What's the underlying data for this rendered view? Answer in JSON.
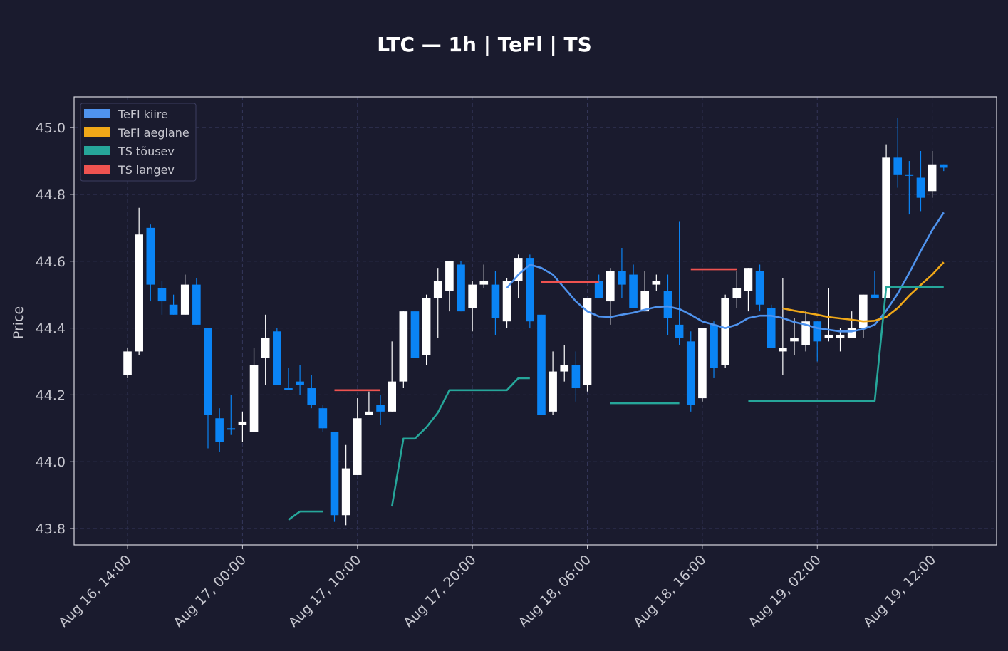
{
  "chart_data": {
    "type": "candlestick",
    "title": "LTC — 1h  |  TeFl  |  TS",
    "y_label": "Price",
    "open": [
      44.26,
      44.33,
      44.7,
      44.52,
      44.47,
      44.44,
      44.53,
      44.4,
      44.13,
      44.1,
      44.11,
      44.09,
      44.31,
      44.39,
      44.22,
      44.24,
      44.22,
      44.16,
      44.09,
      43.84,
      43.96,
      44.14,
      44.17,
      44.15,
      44.24,
      44.45,
      44.32,
      44.49,
      44.51,
      44.59,
      44.46,
      44.53,
      44.53,
      44.42,
      44.54,
      44.61,
      44.44,
      44.15,
      44.27,
      44.29,
      44.23,
      44.54,
      44.48,
      44.57,
      44.56,
      44.45,
      44.53,
      44.51,
      44.41,
      44.36,
      44.19,
      44.41,
      44.29,
      44.49,
      44.51,
      44.57,
      44.46,
      44.33,
      44.36,
      44.35,
      44.42,
      44.37,
      44.37,
      44.37,
      44.4,
      44.5,
      44.49,
      44.91,
      44.86,
      44.85,
      44.81,
      44.89
    ],
    "high": [
      44.34,
      44.76,
      44.71,
      44.54,
      44.5,
      44.56,
      44.55,
      44.4,
      44.16,
      44.2,
      44.15,
      44.34,
      44.44,
      44.4,
      44.28,
      44.29,
      44.26,
      44.17,
      44.09,
      44.05,
      44.19,
      44.21,
      44.2,
      44.36,
      44.45,
      44.45,
      44.5,
      44.58,
      44.6,
      44.6,
      44.54,
      44.59,
      44.57,
      44.55,
      44.62,
      44.62,
      44.44,
      44.33,
      44.35,
      44.33,
      44.49,
      44.56,
      44.58,
      44.64,
      44.59,
      44.57,
      44.56,
      44.56,
      44.72,
      44.39,
      44.4,
      44.42,
      44.5,
      44.57,
      44.58,
      44.59,
      44.47,
      44.55,
      44.43,
      44.45,
      44.42,
      44.52,
      44.4,
      44.45,
      44.5,
      44.57,
      44.95,
      45.03,
      44.9,
      44.93,
      44.93,
      44.89
    ],
    "low": [
      44.25,
      44.32,
      44.48,
      44.44,
      44.44,
      44.44,
      44.41,
      44.04,
      44.03,
      44.08,
      44.06,
      44.09,
      44.23,
      44.23,
      44.22,
      44.2,
      44.16,
      44.09,
      43.82,
      43.81,
      43.96,
      44.14,
      44.11,
      44.15,
      44.22,
      44.31,
      44.29,
      44.37,
      44.45,
      44.45,
      44.39,
      44.52,
      44.38,
      44.4,
      44.49,
      44.4,
      44.14,
      44.14,
      44.24,
      44.18,
      44.21,
      44.49,
      44.41,
      44.49,
      44.46,
      44.45,
      44.51,
      44.38,
      44.35,
      44.15,
      44.18,
      44.25,
      44.28,
      44.46,
      44.45,
      44.45,
      44.34,
      44.26,
      44.32,
      44.33,
      44.3,
      44.36,
      44.33,
      44.37,
      44.37,
      44.49,
      44.49,
      44.82,
      44.74,
      44.75,
      44.79,
      44.87
    ],
    "close": [
      44.33,
      44.68,
      44.53,
      44.48,
      44.44,
      44.53,
      44.41,
      44.14,
      44.06,
      44.1,
      44.12,
      44.29,
      44.37,
      44.23,
      44.22,
      44.23,
      44.17,
      44.1,
      43.84,
      43.98,
      44.13,
      44.15,
      44.15,
      44.24,
      44.45,
      44.31,
      44.49,
      44.54,
      44.6,
      44.45,
      44.53,
      44.54,
      44.43,
      44.54,
      44.61,
      44.42,
      44.14,
      44.27,
      44.29,
      44.22,
      44.49,
      44.49,
      44.57,
      44.53,
      44.46,
      44.51,
      44.54,
      44.43,
      44.37,
      44.17,
      44.4,
      44.28,
      44.49,
      44.52,
      44.58,
      44.47,
      44.34,
      44.34,
      44.37,
      44.42,
      44.36,
      44.38,
      44.38,
      44.4,
      44.5,
      44.49,
      44.91,
      44.86,
      44.86,
      44.79,
      44.89,
      44.88
    ],
    "up_color": "#ffffff",
    "down_color": "#0a84f5",
    "lines": [
      {
        "name": "TeFl kiire",
        "color": "#4f93ee",
        "values": [
          null,
          null,
          null,
          null,
          null,
          null,
          null,
          null,
          null,
          null,
          null,
          null,
          null,
          null,
          null,
          null,
          null,
          null,
          null,
          null,
          null,
          null,
          null,
          null,
          null,
          null,
          null,
          null,
          null,
          null,
          null,
          null,
          null,
          44.52,
          44.56,
          44.59,
          44.58,
          44.56,
          44.52,
          44.48,
          44.45,
          44.435,
          44.433,
          44.44,
          44.446,
          44.455,
          44.463,
          44.465,
          44.457,
          44.44,
          44.42,
          44.41,
          44.4,
          44.41,
          44.43,
          44.437,
          44.437,
          44.43,
          44.418,
          44.41,
          44.4,
          44.395,
          44.39,
          44.39,
          44.397,
          44.41,
          44.452,
          44.503,
          44.565,
          44.631,
          44.693,
          44.746
        ]
      },
      {
        "name": "TeFl aeglane",
        "color": "#f0a818",
        "values": [
          null,
          null,
          null,
          null,
          null,
          null,
          null,
          null,
          null,
          null,
          null,
          null,
          null,
          null,
          null,
          null,
          null,
          null,
          null,
          null,
          null,
          null,
          null,
          null,
          null,
          null,
          null,
          null,
          null,
          null,
          null,
          null,
          null,
          null,
          null,
          null,
          null,
          null,
          null,
          null,
          null,
          null,
          null,
          null,
          null,
          null,
          null,
          null,
          null,
          null,
          null,
          null,
          null,
          null,
          null,
          null,
          null,
          44.459,
          44.452,
          44.446,
          44.44,
          44.433,
          44.429,
          44.425,
          44.42,
          44.422,
          44.433,
          44.46,
          44.497,
          44.529,
          44.56,
          44.597
        ]
      },
      {
        "name": "TS tõusev",
        "color": "#26a69a",
        "values": [
          null,
          null,
          null,
          null,
          null,
          null,
          null,
          null,
          null,
          null,
          null,
          null,
          null,
          null,
          43.826,
          43.851,
          43.851,
          43.851,
          null,
          null,
          null,
          null,
          null,
          43.866,
          44.069,
          44.069,
          44.103,
          44.147,
          44.214,
          44.214,
          44.214,
          44.214,
          44.214,
          44.214,
          44.25,
          44.25,
          null,
          null,
          null,
          null,
          null,
          null,
          44.175,
          44.175,
          44.175,
          44.175,
          44.175,
          44.175,
          44.175,
          null,
          null,
          null,
          null,
          null,
          44.182,
          44.182,
          44.182,
          44.182,
          44.182,
          44.182,
          44.182,
          44.182,
          44.182,
          44.182,
          44.182,
          44.182,
          44.523,
          44.523,
          44.523,
          44.523,
          44.523,
          44.523
        ]
      },
      {
        "name": "TS langev",
        "color": "#ef5350",
        "values": [
          null,
          null,
          null,
          null,
          null,
          null,
          null,
          null,
          null,
          null,
          null,
          null,
          null,
          null,
          null,
          null,
          null,
          null,
          44.214,
          44.214,
          44.214,
          44.214,
          44.214,
          null,
          null,
          null,
          null,
          null,
          null,
          null,
          null,
          null,
          null,
          null,
          null,
          null,
          44.537,
          44.537,
          44.537,
          44.537,
          44.537,
          44.537,
          null,
          null,
          null,
          null,
          null,
          null,
          null,
          44.576,
          44.576,
          44.576,
          44.576,
          44.576,
          null,
          null,
          null,
          null,
          null,
          null,
          null,
          null,
          null,
          null,
          null,
          null,
          null,
          null,
          null,
          null,
          null,
          null
        ]
      }
    ],
    "xlim": [
      -4.65,
      75.6
    ],
    "xticks": [
      {
        "value": 0,
        "label": "Aug 16, 14:00"
      },
      {
        "value": 10,
        "label": "Aug 17, 00:00"
      },
      {
        "value": 20,
        "label": "Aug 17, 10:00"
      },
      {
        "value": 30,
        "label": "Aug 17, 20:00"
      },
      {
        "value": 40,
        "label": "Aug 18, 06:00"
      },
      {
        "value": 50,
        "label": "Aug 18, 16:00"
      },
      {
        "value": 60,
        "label": "Aug 19, 02:00"
      },
      {
        "value": 70,
        "label": "Aug 19, 12:00"
      }
    ],
    "ylim": [
      43.751,
      45.092
    ],
    "yticks": [
      43.8,
      {
        "value": 44,
        "label": "44.0"
      },
      44.2,
      44.4,
      44.6,
      44.8,
      {
        "value": 45,
        "label": "45.0"
      }
    ],
    "grid": true,
    "legend": "upper left"
  }
}
